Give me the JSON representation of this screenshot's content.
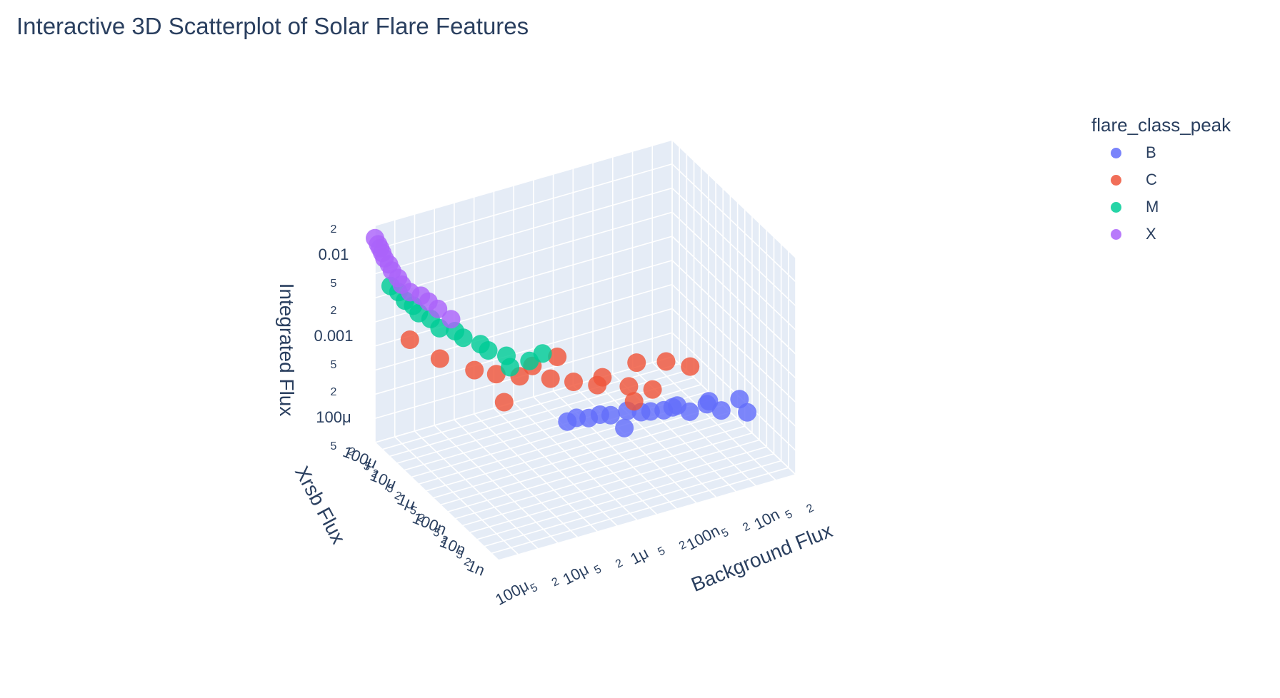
{
  "title": "Interactive 3D Scatterplot of Solar Flare Features",
  "legend": {
    "title": "flare_class_peak",
    "items": [
      {
        "label": "B",
        "color": "#636efa"
      },
      {
        "label": "C",
        "color": "#ef553b"
      },
      {
        "label": "M",
        "color": "#00cc96"
      },
      {
        "label": "X",
        "color": "#ab63fa"
      }
    ]
  },
  "chart_data": {
    "type": "scatter",
    "dimensions": "3d",
    "x_axis": {
      "title": "Background Flux",
      "scale": "log",
      "range": [
        1e-08,
        0.0002
      ],
      "ticks": [
        "100μ",
        "5",
        "2",
        "10μ",
        "5",
        "2",
        "1μ",
        "5",
        "2",
        "100n",
        "5",
        "2",
        "10n",
        "5",
        "2"
      ]
    },
    "y_axis": {
      "title": "Xrsb Flux",
      "scale": "log",
      "range": [
        1e-09,
        0.0002
      ],
      "ticks": [
        "1n",
        "2",
        "5",
        "10n",
        "2",
        "5",
        "100n",
        "2",
        "5",
        "1μ",
        "2",
        "5",
        "10μ",
        "2",
        "5",
        "100μ",
        "2"
      ]
    },
    "z_axis": {
      "title": "Integrated Flux",
      "scale": "log",
      "range": [
        3e-05,
        0.03
      ],
      "ticks": [
        "5",
        "100μ",
        "2",
        "5",
        "0.001",
        "2",
        "5",
        "0.01",
        "2"
      ]
    },
    "series": [
      {
        "name": "B",
        "color": "#636efa",
        "points": [
          [
            1e-08,
            1.2e-07,
            5e-05
          ],
          [
            2e-08,
            2e-07,
            5.5e-05
          ],
          [
            5e-08,
            3e-07,
            6e-05
          ],
          [
            1e-07,
            5e-07,
            6.5e-05
          ],
          [
            2e-07,
            6e-07,
            7e-05
          ],
          [
            5e-07,
            8e-07,
            7.5e-05
          ],
          [
            1e-06,
            9e-07,
            8e-05
          ],
          [
            2e-06,
            9.5e-07,
            8.5e-05
          ],
          [
            1.2e-08,
            1.5e-07,
            7.5e-05
          ],
          [
            3e-08,
            2.5e-07,
            7e-05
          ],
          [
            8e-08,
            4e-07,
            7.2e-05
          ],
          [
            1.5e-07,
            5.5e-07,
            6.8e-05
          ],
          [
            3e-07,
            7e-07,
            7.8e-05
          ],
          [
            7e-07,
            8.5e-07,
            8.2e-05
          ],
          [
            1.5e-06,
            9e-07,
            9e-05
          ],
          [
            4e-07,
            4e-07,
            5.8e-05
          ],
          [
            6e-08,
            6e-07,
            6.2e-05
          ],
          [
            2.5e-08,
            3.5e-07,
            6.6e-05
          ]
        ]
      },
      {
        "name": "C",
        "color": "#ef553b",
        "points": [
          [
            1e-07,
            1.5e-06,
            9e-05
          ],
          [
            2e-07,
            2e-06,
            0.00011
          ],
          [
            5e-07,
            3e-06,
            0.00013
          ],
          [
            1e-06,
            4e-06,
            0.00016
          ],
          [
            2e-06,
            5e-06,
            0.0002
          ],
          [
            5e-06,
            7e-06,
            0.00025
          ],
          [
            1e-05,
            9e-06,
            0.0003
          ],
          [
            2e-05,
            1e-05,
            0.0004
          ],
          [
            5e-05,
            2e-05,
            0.0006
          ],
          [
            0.0001,
            5e-05,
            0.001
          ],
          [
            3e-08,
            1.3e-06,
            0.00014
          ],
          [
            6e-08,
            1.8e-06,
            0.00018
          ],
          [
            1.5e-07,
            2.2e-06,
            0.00021
          ],
          [
            4e-07,
            3.5e-06,
            0.00015
          ],
          [
            1.5e-06,
            6e-06,
            0.00035
          ],
          [
            8e-06,
            8e-06,
            0.00012
          ],
          [
            3e-06,
            9e-06,
            0.00028
          ],
          [
            2e-07,
            1.2e-06,
            8e-05
          ]
        ]
      },
      {
        "name": "M",
        "color": "#00cc96",
        "points": [
          [
            3e-06,
            1.2e-05,
            0.0003
          ],
          [
            6e-06,
            1.5e-05,
            0.0004
          ],
          [
            1e-05,
            2e-05,
            0.0005
          ],
          [
            2e-05,
            3e-05,
            0.0008
          ],
          [
            4e-05,
            4e-05,
            0.0012
          ],
          [
            7e-05,
            6e-05,
            0.002
          ],
          [
            0.0001,
            8e-05,
            0.003
          ],
          [
            0.00015,
            0.0001,
            0.005
          ],
          [
            5e-06,
            1.8e-05,
            0.00025
          ],
          [
            1.2e-05,
            2.5e-05,
            0.0006
          ],
          [
            2.5e-05,
            3.5e-05,
            0.001
          ],
          [
            5e-05,
            5e-05,
            0.0016
          ],
          [
            8e-05,
            7e-05,
            0.0025
          ],
          [
            0.00012,
            9e-05,
            0.004
          ],
          [
            2e-06,
            1.1e-05,
            0.00035
          ]
        ]
      },
      {
        "name": "X",
        "color": "#ab63fa",
        "points": [
          [
            2e-05,
            0.0001,
            0.001
          ],
          [
            4e-05,
            0.00012,
            0.002
          ],
          [
            7e-05,
            0.00014,
            0.003
          ],
          [
            0.0001,
            0.00016,
            0.005
          ],
          [
            0.00013,
            0.00018,
            0.008
          ],
          [
            0.00016,
            0.00019,
            0.012
          ],
          [
            0.00018,
            0.0002,
            0.016
          ],
          [
            0.0002,
            0.0002,
            0.02
          ],
          [
            3e-05,
            0.00011,
            0.0015
          ],
          [
            5e-05,
            0.00013,
            0.0025
          ],
          [
            9e-05,
            0.00015,
            0.004
          ],
          [
            0.00012,
            0.00017,
            0.0065
          ],
          [
            0.00015,
            0.000185,
            0.01
          ],
          [
            0.00017,
            0.000195,
            0.014
          ]
        ]
      }
    ],
    "grid": true,
    "legend_position": "top-right"
  }
}
